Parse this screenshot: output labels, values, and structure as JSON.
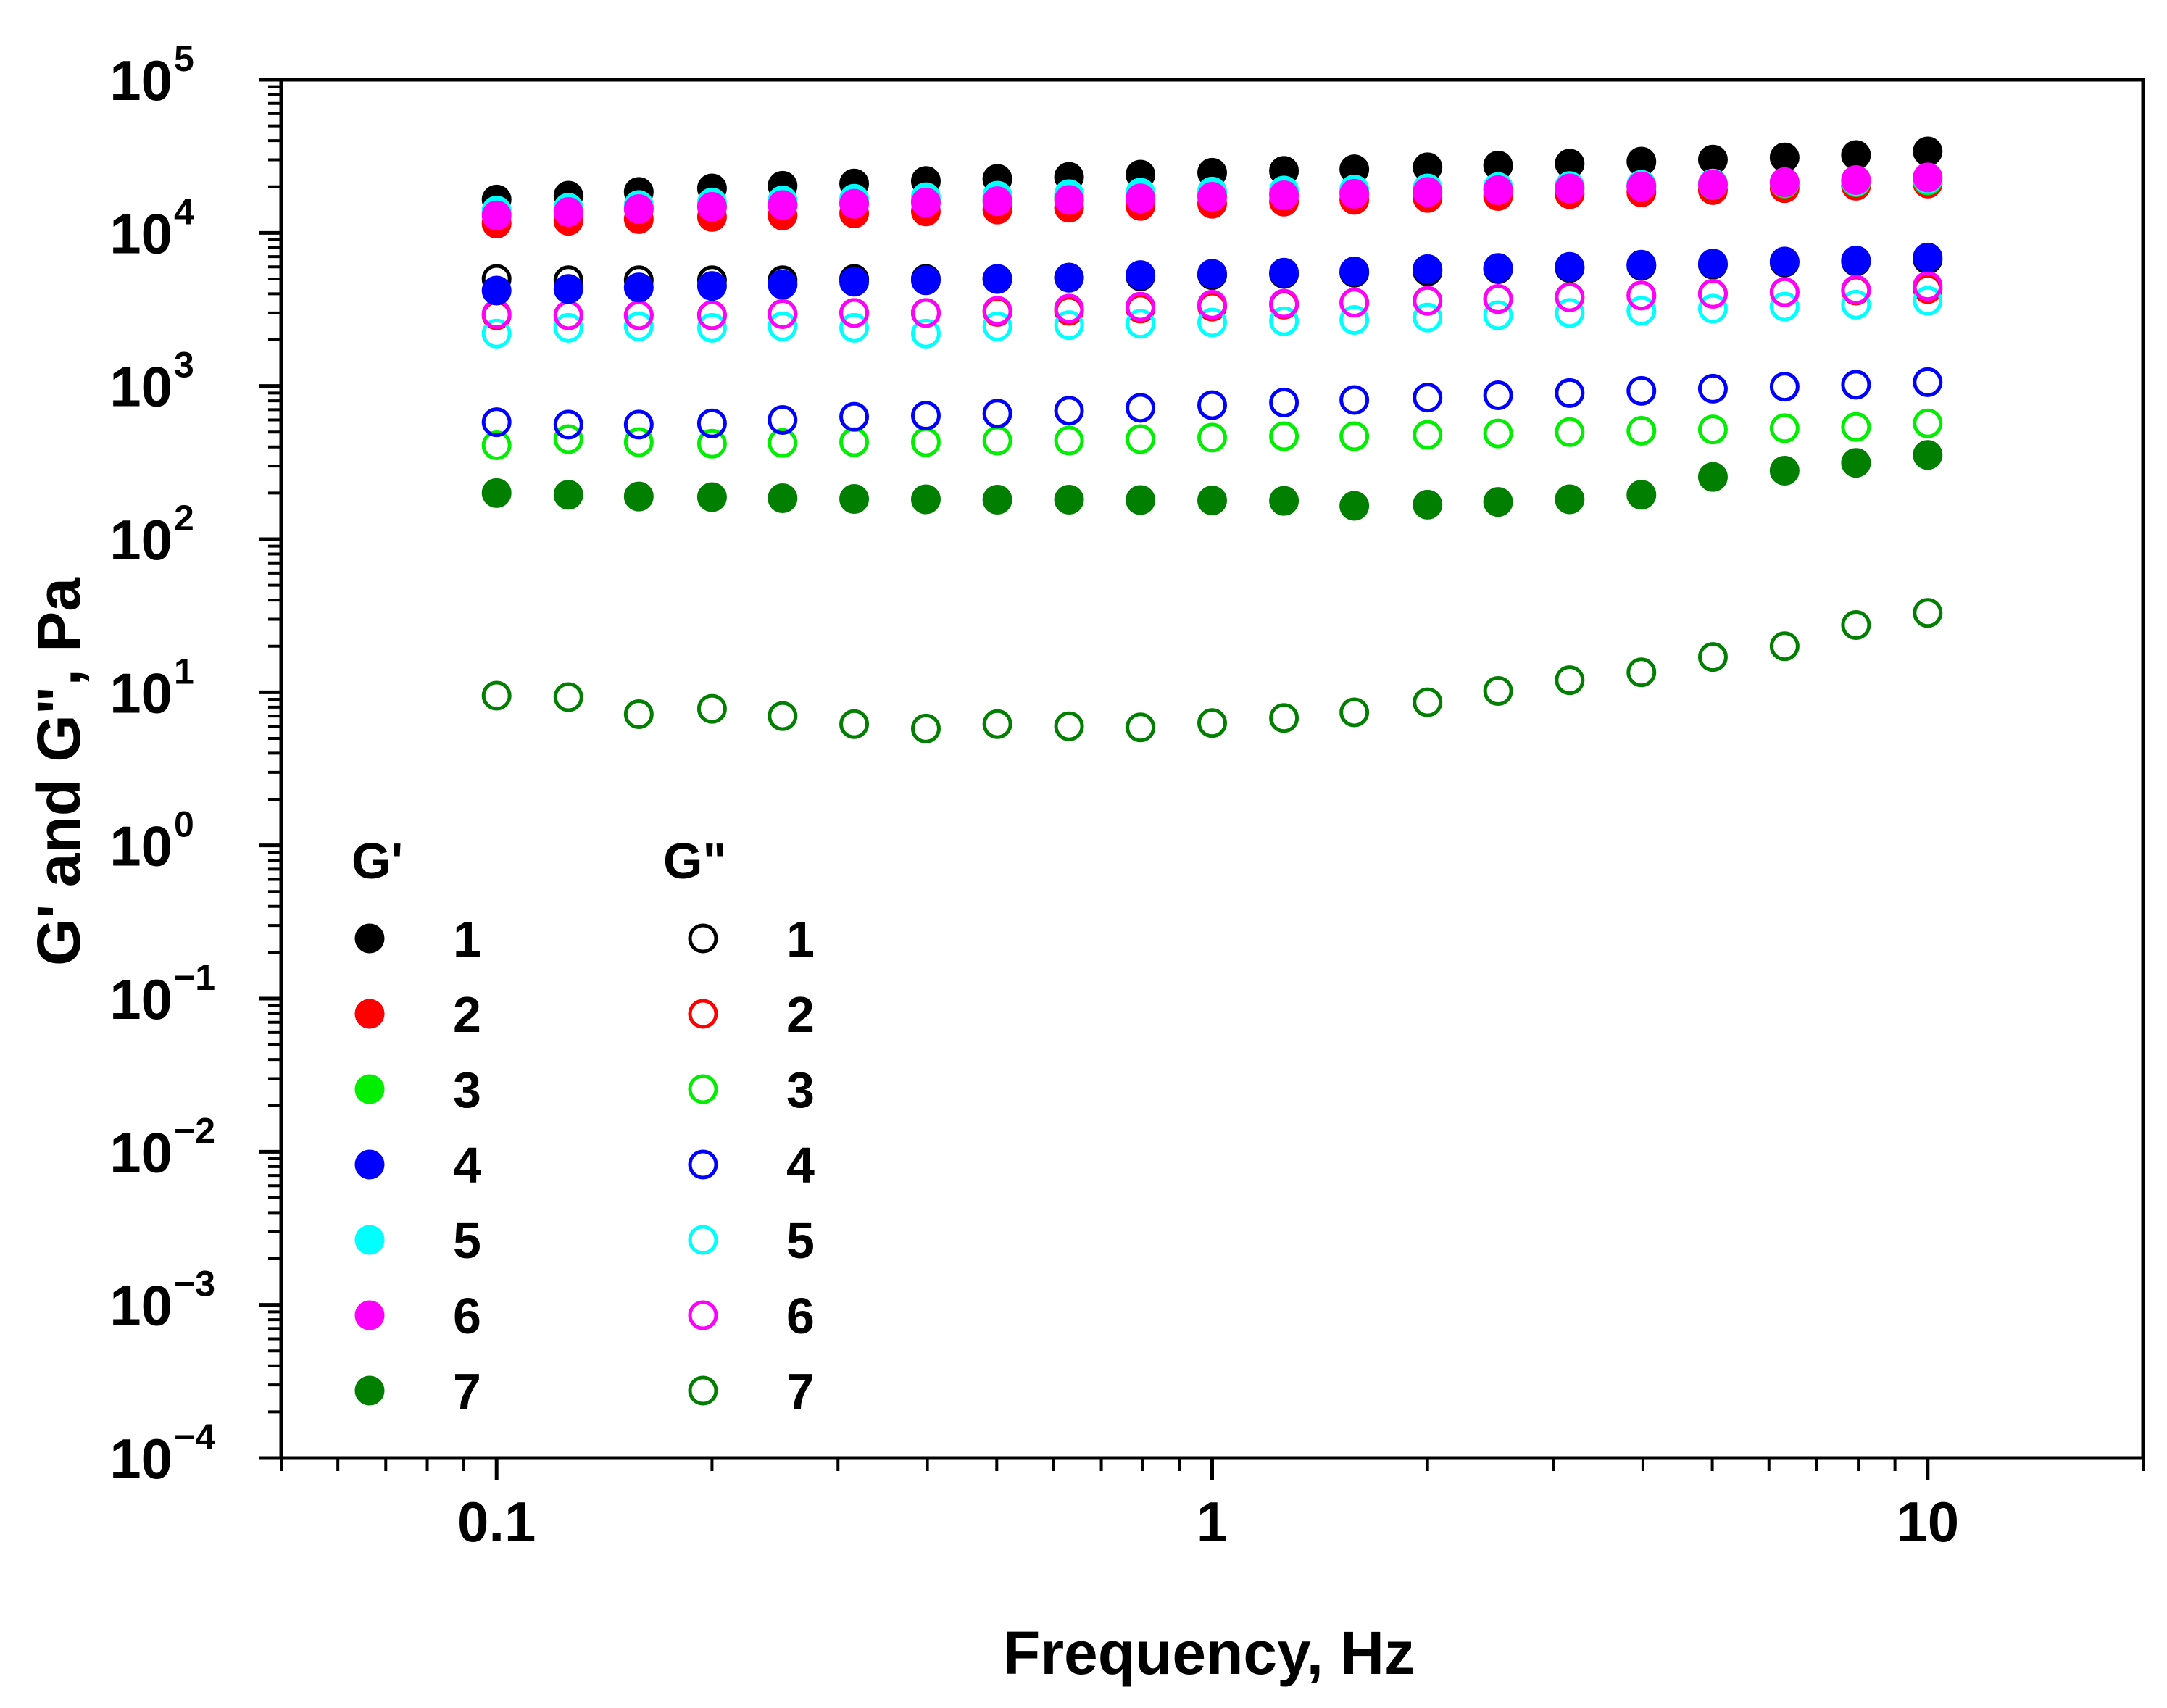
{
  "chart_data": {
    "type": "scatter",
    "title": "",
    "xlabel": "Frequency, Hz",
    "ylabel": "G' and G\", Pa",
    "x_scale": "log",
    "y_scale": "log",
    "xlim": [
      0.05,
      20
    ],
    "ylim": [
      0.0001,
      100000
    ],
    "x_ticks": [
      {
        "value": 0.1,
        "label": "0.1"
      },
      {
        "value": 1,
        "label": "1"
      },
      {
        "value": 10,
        "label": "10"
      }
    ],
    "y_ticks": [
      {
        "value": 100000,
        "base": "10",
        "exp": "5"
      },
      {
        "value": 10000,
        "base": "10",
        "exp": "4"
      },
      {
        "value": 1000,
        "base": "10",
        "exp": "3"
      },
      {
        "value": 100,
        "base": "10",
        "exp": "2"
      },
      {
        "value": 10,
        "base": "10",
        "exp": "1"
      },
      {
        "value": 1,
        "base": "10",
        "exp": "0"
      },
      {
        "value": 0.1,
        "base": "10",
        "exp": "−1"
      },
      {
        "value": 0.01,
        "base": "10",
        "exp": "−2"
      },
      {
        "value": 0.001,
        "base": "10",
        "exp": "−3"
      },
      {
        "value": 0.0001,
        "base": "10",
        "exp": "−4"
      }
    ],
    "grid": false,
    "legend_placement": "bottom-left",
    "legend": {
      "filled_header": "G'",
      "open_header": "G\"",
      "labels": [
        "1",
        "2",
        "3",
        "4",
        "5",
        "6",
        "7"
      ]
    },
    "x": [
      0.1,
      0.126,
      0.158,
      0.2,
      0.251,
      0.316,
      0.398,
      0.501,
      0.631,
      0.794,
      1,
      1.26,
      1.58,
      2,
      2.51,
      3.16,
      3.98,
      5.01,
      6.31,
      7.94,
      10
    ],
    "series": [
      {
        "label": "1",
        "kind": "G'",
        "filled": true,
        "color": "#000000",
        "values": [
          16500,
          17500,
          18500,
          19500,
          20300,
          21000,
          21800,
          22500,
          23200,
          24000,
          24700,
          25400,
          26000,
          26800,
          27500,
          28300,
          29200,
          30100,
          31100,
          32200,
          34000
        ]
      },
      {
        "label": "2",
        "kind": "G'",
        "filled": true,
        "color": "#ff0000",
        "values": [
          11500,
          12000,
          12300,
          12700,
          13000,
          13400,
          13800,
          14200,
          14600,
          15000,
          15500,
          16000,
          16400,
          16900,
          17400,
          17900,
          18400,
          19000,
          19600,
          20300,
          21000
        ]
      },
      {
        "label": "3",
        "kind": "G'",
        "filled": true,
        "color": "#00ee00",
        "values": [
          13500,
          14000,
          14500,
          15000,
          15400,
          15800,
          16200,
          16600,
          17000,
          17400,
          17800,
          18200,
          18600,
          19000,
          19400,
          19800,
          20200,
          20600,
          21000,
          21400,
          22000
        ]
      },
      {
        "label": "4",
        "kind": "G'",
        "filled": true,
        "color": "#0000ff",
        "values": [
          4200,
          4300,
          4400,
          4500,
          4600,
          4800,
          4900,
          5000,
          5100,
          5300,
          5400,
          5500,
          5600,
          5800,
          5900,
          6000,
          6200,
          6300,
          6500,
          6600,
          6900
        ]
      },
      {
        "label": "5",
        "kind": "G'",
        "filled": true,
        "color": "#00ffff",
        "values": [
          14000,
          14600,
          15200,
          15800,
          16300,
          16700,
          17100,
          17500,
          17900,
          18300,
          18600,
          18900,
          19200,
          19500,
          19900,
          20200,
          20600,
          21000,
          21400,
          21800,
          22500
        ]
      },
      {
        "label": "6",
        "kind": "G'",
        "filled": true,
        "color": "#ff00ff",
        "values": [
          13000,
          13700,
          14300,
          14800,
          15200,
          15500,
          15800,
          16100,
          16400,
          16800,
          17200,
          17600,
          18000,
          18500,
          19000,
          19500,
          20100,
          20700,
          21400,
          22100,
          23000
        ]
      },
      {
        "label": "7",
        "kind": "G'",
        "filled": true,
        "color": "#007f00",
        "values": [
          200,
          195,
          190,
          188,
          185,
          183,
          182,
          181,
          181,
          180,
          179,
          178,
          165,
          168,
          175,
          182,
          195,
          255,
          280,
          315,
          355
        ]
      },
      {
        "label": "1",
        "kind": "G\"",
        "filled": false,
        "color": "#000000",
        "values": [
          5000,
          4900,
          4900,
          4900,
          4900,
          5000,
          5000,
          5000,
          5100,
          5200,
          5300,
          5400,
          5500,
          5600,
          5800,
          5900,
          6100,
          6200,
          6400,
          6500,
          6700
        ]
      },
      {
        "label": "2",
        "kind": "G\"",
        "filled": false,
        "color": "#ff0000",
        "values": [
          2900,
          2900,
          2900,
          2900,
          2950,
          3000,
          3000,
          3050,
          3100,
          3200,
          3300,
          3400,
          3500,
          3600,
          3700,
          3800,
          3900,
          4000,
          4100,
          4200,
          4300
        ]
      },
      {
        "label": "3",
        "kind": "G\"",
        "filled": false,
        "color": "#00ee00",
        "values": [
          410,
          450,
          430,
          420,
          425,
          430,
          430,
          440,
          440,
          450,
          460,
          470,
          470,
          480,
          490,
          500,
          510,
          520,
          530,
          540,
          570
        ]
      },
      {
        "label": "4",
        "kind": "G\"",
        "filled": false,
        "color": "#0000ff",
        "values": [
          580,
          560,
          560,
          570,
          600,
          630,
          640,
          660,
          690,
          720,
          750,
          780,
          810,
          840,
          870,
          900,
          930,
          960,
          990,
          1020,
          1060
        ]
      },
      {
        "label": "5",
        "kind": "G\"",
        "filled": false,
        "color": "#00ffff",
        "values": [
          2200,
          2400,
          2450,
          2400,
          2450,
          2400,
          2200,
          2450,
          2500,
          2550,
          2600,
          2650,
          2700,
          2800,
          2900,
          3000,
          3100,
          3200,
          3300,
          3400,
          3600
        ]
      },
      {
        "label": "6",
        "kind": "G\"",
        "filled": false,
        "color": "#ff00ff",
        "values": [
          2950,
          2900,
          2900,
          2900,
          2950,
          3000,
          3000,
          3100,
          3200,
          3300,
          3400,
          3450,
          3500,
          3600,
          3700,
          3800,
          3900,
          4000,
          4100,
          4250,
          4500
        ]
      },
      {
        "label": "7",
        "kind": "G\"",
        "filled": false,
        "color": "#007f00",
        "values": [
          9.5,
          9.3,
          7.2,
          7.8,
          7.0,
          6.2,
          5.8,
          6.2,
          6.0,
          5.9,
          6.3,
          6.8,
          7.4,
          8.6,
          10.2,
          12.0,
          13.5,
          17.0,
          20.0,
          27.5,
          33.0
        ]
      }
    ]
  }
}
